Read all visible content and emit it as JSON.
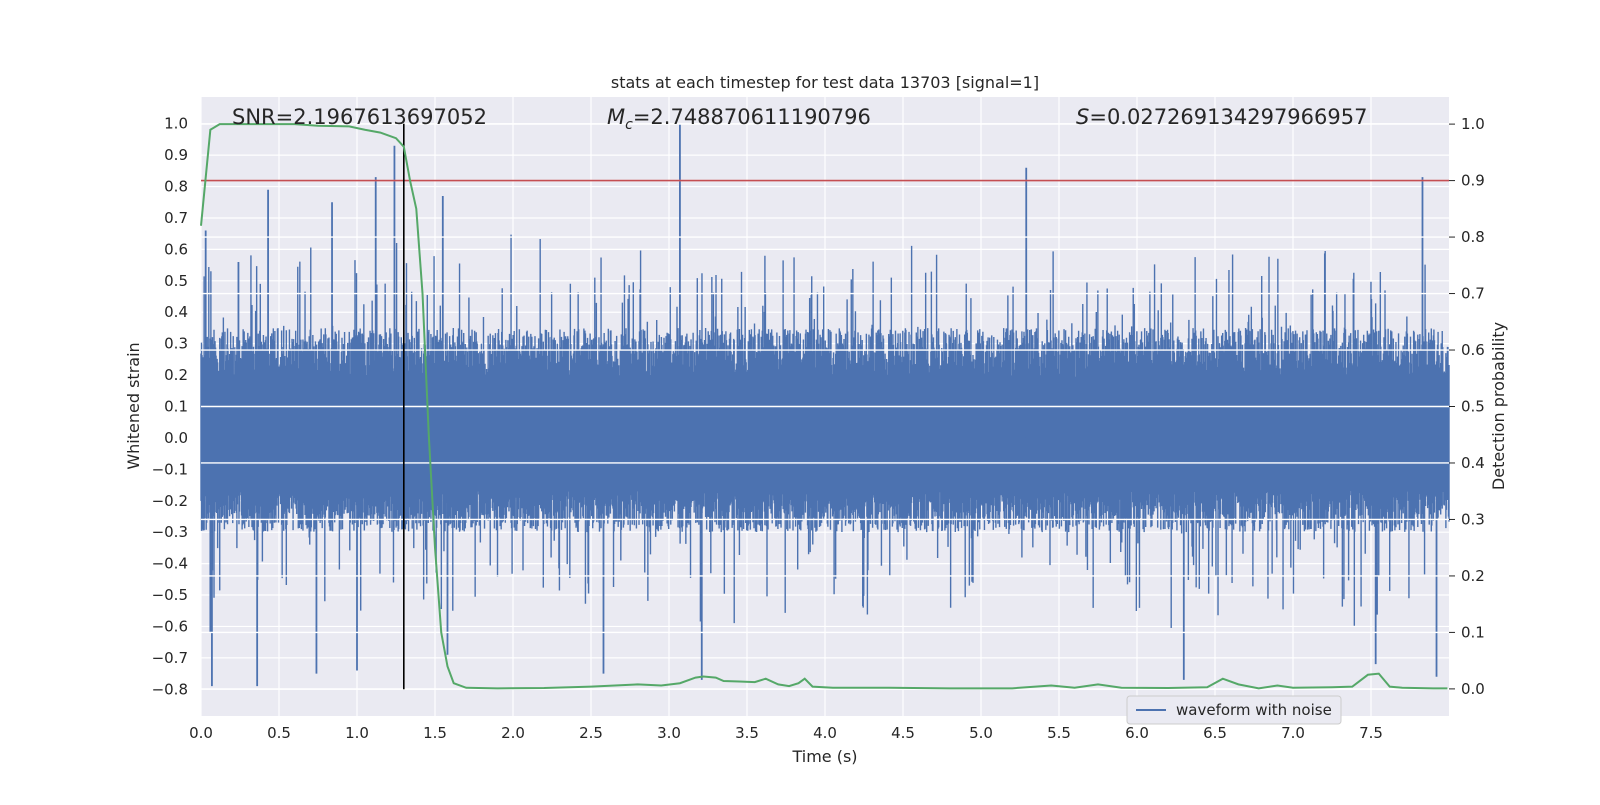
{
  "chart_data": {
    "type": "line",
    "title": "stats at each timestep for test data 13703 [signal=1]",
    "xlabel": "Time (s)",
    "ylabel_left": "Whitened strain",
    "ylabel_right": "Detection probability",
    "xlim": [
      0.0,
      8.0
    ],
    "ylim_left": [
      -0.885,
      1.085
    ],
    "ylim_right": [
      -0.048,
      1.048
    ],
    "x_ticks": [
      "0.0",
      "0.5",
      "1.0",
      "1.5",
      "2.0",
      "2.5",
      "3.0",
      "3.5",
      "4.0",
      "4.5",
      "5.0",
      "5.5",
      "6.0",
      "6.5",
      "7.0",
      "7.5"
    ],
    "y_left_ticks": [
      "1.0",
      "0.9",
      "0.8",
      "0.7",
      "0.6",
      "0.5",
      "0.4",
      "0.3",
      "0.2",
      "0.1",
      "0.0",
      "−0.1",
      "−0.2",
      "−0.3",
      "−0.4",
      "−0.5",
      "−0.6",
      "−0.7",
      "−0.8"
    ],
    "y_right_ticks": [
      "1.0",
      "0.9",
      "0.8",
      "0.7",
      "0.6",
      "0.5",
      "0.4",
      "0.3",
      "0.2",
      "0.1",
      "0.0"
    ],
    "grid": true,
    "legend_placement": "lower-right",
    "annotations": {
      "snr": "SNR=2.1967613697052",
      "mc_symbol": "M",
      "mc_subscript": "c",
      "mc_value": "=2.748870611190796",
      "s_symbol": "S",
      "s_value": "=0.027269134297966957"
    },
    "threshold": {
      "axis": "right",
      "value": 0.9,
      "color": "#c44e52"
    },
    "detection_marker": {
      "x": 1.3,
      "color": "#000000"
    },
    "waveform": {
      "name": "waveform with noise",
      "axis": "left",
      "color": "#4c72b0",
      "y_range_bulk": [
        -0.3,
        0.35
      ],
      "spikes": [
        {
          "x": 0.03,
          "y": 0.66
        },
        {
          "x": 0.06,
          "y": -0.62
        },
        {
          "x": 0.07,
          "y": -0.79
        },
        {
          "x": 0.24,
          "y": 0.56
        },
        {
          "x": 0.36,
          "y": -0.79
        },
        {
          "x": 0.43,
          "y": 0.79
        },
        {
          "x": 0.74,
          "y": -0.75
        },
        {
          "x": 0.84,
          "y": 0.75
        },
        {
          "x": 1.0,
          "y": -0.74
        },
        {
          "x": 1.12,
          "y": 0.83
        },
        {
          "x": 1.24,
          "y": 0.93
        },
        {
          "x": 1.55,
          "y": 0.77
        },
        {
          "x": 1.58,
          "y": -0.69
        },
        {
          "x": 2.58,
          "y": -0.75
        },
        {
          "x": 3.07,
          "y": 1.0
        },
        {
          "x": 3.21,
          "y": -0.77
        },
        {
          "x": 5.29,
          "y": 0.86
        },
        {
          "x": 6.3,
          "y": -0.77
        },
        {
          "x": 7.53,
          "y": -0.72
        },
        {
          "x": 7.83,
          "y": 0.83
        },
        {
          "x": 7.92,
          "y": -0.76
        }
      ]
    },
    "probability": {
      "axis": "right",
      "color": "#55a868",
      "points": [
        [
          0.0,
          0.82
        ],
        [
          0.06,
          0.99
        ],
        [
          0.12,
          1.0
        ],
        [
          0.3,
          1.0
        ],
        [
          0.6,
          1.0
        ],
        [
          0.75,
          0.997
        ],
        [
          0.95,
          0.996
        ],
        [
          1.05,
          0.99
        ],
        [
          1.15,
          0.985
        ],
        [
          1.25,
          0.975
        ],
        [
          1.3,
          0.96
        ],
        [
          1.34,
          0.9
        ],
        [
          1.38,
          0.85
        ],
        [
          1.42,
          0.7
        ],
        [
          1.46,
          0.45
        ],
        [
          1.5,
          0.25
        ],
        [
          1.54,
          0.1
        ],
        [
          1.58,
          0.04
        ],
        [
          1.62,
          0.01
        ],
        [
          1.7,
          0.002
        ],
        [
          1.9,
          0.001
        ],
        [
          2.2,
          0.0015
        ],
        [
          2.5,
          0.004
        ],
        [
          2.8,
          0.008
        ],
        [
          2.95,
          0.006
        ],
        [
          3.07,
          0.01
        ],
        [
          3.17,
          0.02
        ],
        [
          3.22,
          0.022
        ],
        [
          3.3,
          0.02
        ],
        [
          3.35,
          0.014
        ],
        [
          3.45,
          0.013
        ],
        [
          3.55,
          0.012
        ],
        [
          3.62,
          0.018
        ],
        [
          3.7,
          0.008
        ],
        [
          3.77,
          0.005
        ],
        [
          3.83,
          0.01
        ],
        [
          3.87,
          0.018
        ],
        [
          3.92,
          0.004
        ],
        [
          4.05,
          0.002
        ],
        [
          4.4,
          0.002
        ],
        [
          4.8,
          0.001
        ],
        [
          5.2,
          0.001
        ],
        [
          5.45,
          0.006
        ],
        [
          5.6,
          0.002
        ],
        [
          5.75,
          0.008
        ],
        [
          5.9,
          0.002
        ],
        [
          6.2,
          0.0015
        ],
        [
          6.45,
          0.003
        ],
        [
          6.55,
          0.018
        ],
        [
          6.65,
          0.008
        ],
        [
          6.78,
          0.001
        ],
        [
          6.9,
          0.006
        ],
        [
          7.0,
          0.002
        ],
        [
          7.25,
          0.003
        ],
        [
          7.38,
          0.004
        ],
        [
          7.48,
          0.025
        ],
        [
          7.55,
          0.027
        ],
        [
          7.62,
          0.004
        ],
        [
          7.7,
          0.002
        ],
        [
          7.9,
          0.001
        ],
        [
          7.99,
          0.001
        ]
      ]
    }
  }
}
